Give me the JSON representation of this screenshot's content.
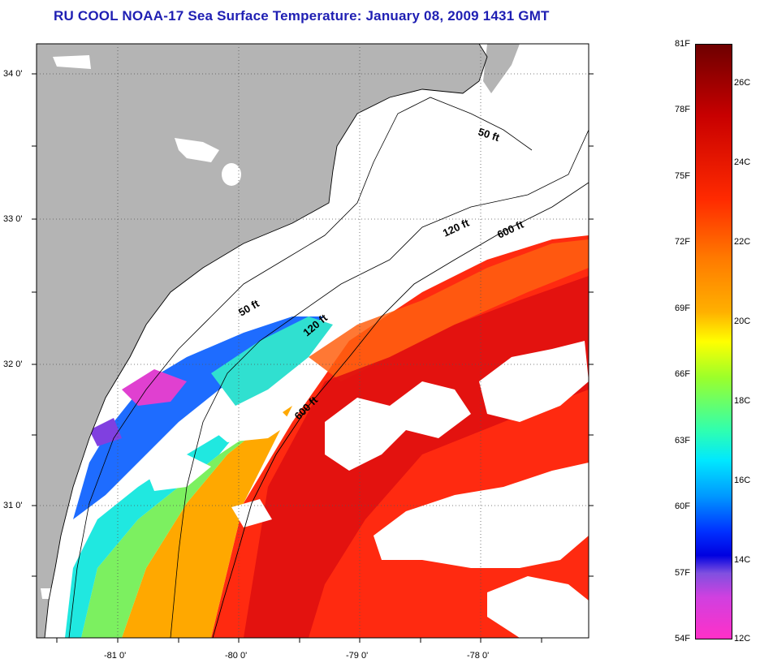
{
  "title": "RU COOL  NOAA-17  Sea Surface Temperature:  January 08, 2009 1431 GMT",
  "map": {
    "lat_labels": [
      "34 0'",
      "33 0'",
      "32 0'",
      "31 0'"
    ],
    "lon_labels": [
      "-81 0'",
      "-80 0'",
      "-79 0'",
      "-78 0'"
    ],
    "contour_labels": [
      "50 ft",
      "120 ft",
      "600 ft",
      "50 ft",
      "120 ft",
      "600 ft"
    ],
    "colors": {
      "land": "#b4b4b4",
      "cloud": "#ffffff",
      "coast": "#000000"
    }
  },
  "colorbar": {
    "fahrenheit_labels": [
      "81F",
      "78F",
      "75F",
      "72F",
      "69F",
      "66F",
      "63F",
      "60F",
      "57F",
      "54F"
    ],
    "celsius_labels": [
      "26C",
      "24C",
      "22C",
      "20C",
      "18C",
      "16C",
      "14C",
      "12C"
    ]
  }
}
